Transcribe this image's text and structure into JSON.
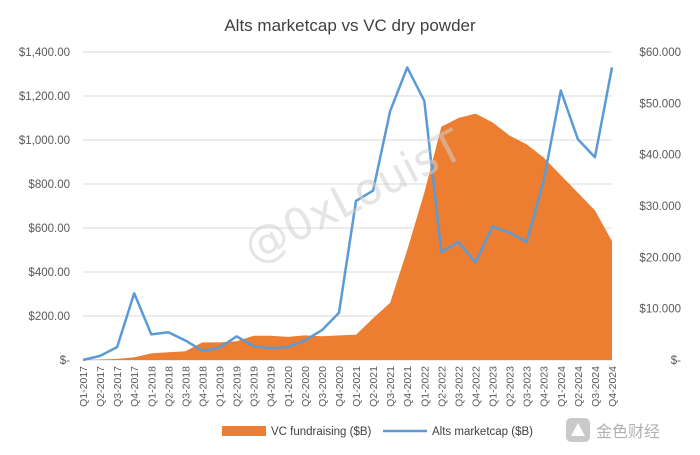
{
  "chart_data": {
    "type": "area+line",
    "title": "Alts marketcap vs VC dry powder",
    "categories": [
      "Q1-2017",
      "Q2-2017",
      "Q3-2017",
      "Q4-2017",
      "Q1-2018",
      "Q2-2018",
      "Q3-2018",
      "Q4-2018",
      "Q1-2019",
      "Q2-2019",
      "Q3-2019",
      "Q4-2019",
      "Q1-2020",
      "Q2-2020",
      "Q3-2020",
      "Q4-2020",
      "Q1-2021",
      "Q2-2021",
      "Q3-2021",
      "Q4-2021",
      "Q1-2022",
      "Q2-2022",
      "Q3-2022",
      "Q4-2022",
      "Q1-2023",
      "Q2-2023",
      "Q3-2023",
      "Q4-2023",
      "Q1-2024",
      "Q2-2024",
      "Q3-2024",
      "Q4-2024"
    ],
    "left_axis": {
      "ylim": [
        0,
        1400
      ],
      "ticks": [
        "$-",
        "$200.00",
        "$400.00",
        "$600.00",
        "$800.00",
        "$1,000.00",
        "$1,200.00",
        "$1,400.00"
      ],
      "values": [
        0,
        200,
        400,
        600,
        800,
        1000,
        1200,
        1400
      ]
    },
    "right_axis": {
      "ylim": [
        0,
        60
      ],
      "ticks": [
        "$-",
        "$10.000",
        "$20.000",
        "$30.000",
        "$40.000",
        "$50.000",
        "$60.000"
      ],
      "values": [
        0,
        10,
        20,
        30,
        40,
        50,
        60
      ]
    },
    "series": [
      {
        "name": "VC fundraising ($B)",
        "type": "area",
        "axis": "left",
        "color": "#ED7D31",
        "values": [
          0,
          2,
          5,
          12,
          30,
          35,
          40,
          80,
          80,
          85,
          110,
          110,
          105,
          112,
          108,
          112,
          115,
          190,
          260,
          500,
          760,
          1060,
          1100,
          1120,
          1080,
          1020,
          980,
          920,
          840,
          760,
          680,
          540
        ]
      },
      {
        "name": "Alts marketcap ($B)",
        "type": "line",
        "axis": "right",
        "color": "#5B9BD5",
        "values": [
          0,
          0.8,
          2.5,
          13,
          5,
          5.4,
          3.8,
          1.8,
          2.4,
          4.6,
          2.7,
          2.3,
          2.5,
          3.8,
          5.8,
          9.2,
          31,
          33,
          48.5,
          57,
          50.5,
          21,
          23,
          19,
          26,
          24.8,
          23,
          35,
          52.5,
          43,
          39.5,
          57
        ]
      }
    ],
    "legend": {
      "position": "bottom"
    }
  },
  "watermarks": {
    "author": "@0xLouisT",
    "brand": "金色财经"
  },
  "colors": {
    "area": "#ED7D31",
    "line": "#5B9BD5",
    "grid": "#D9D9D9",
    "text": "#595959"
  }
}
